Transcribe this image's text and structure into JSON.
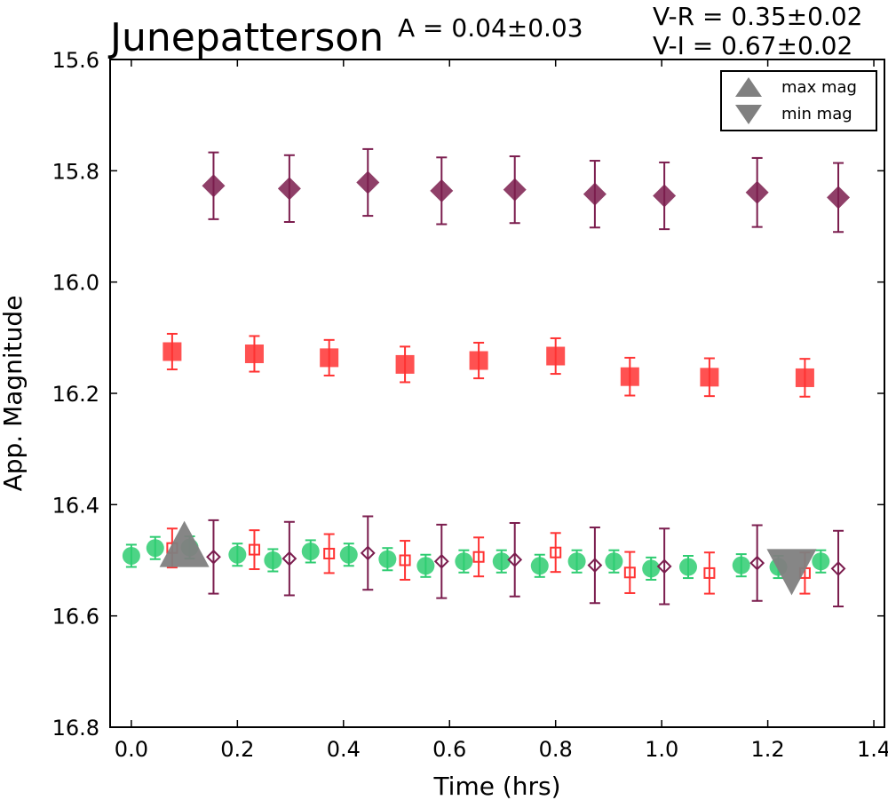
{
  "chart_data": {
    "type": "scatter",
    "title": "Junepatterson",
    "amplitude_text": "A  = 0.04±0.03",
    "color_text": [
      "V-R = 0.35±0.02",
      "V-I  = 0.67±0.02"
    ],
    "xlabel": "Time (hrs)",
    "ylabel": "App. Magnitude",
    "xlim": [
      -0.04,
      1.42
    ],
    "ylim": [
      16.8,
      15.6
    ],
    "x_ticks": [
      0.0,
      0.2,
      0.4,
      0.6,
      0.8,
      1.0,
      1.2,
      1.4
    ],
    "x_tick_labels": [
      "0.0",
      "0.2",
      "0.4",
      "0.6",
      "0.8",
      "1.0",
      "1.2",
      "1.4"
    ],
    "y_ticks": [
      15.6,
      15.8,
      16.0,
      16.2,
      16.4,
      16.6,
      16.8
    ],
    "y_tick_labels": [
      "15.6",
      "15.8",
      "16.0",
      "16.2",
      "16.4",
      "16.6",
      "16.8"
    ],
    "legend": {
      "position": "top-right",
      "entries": [
        {
          "label": "max mag",
          "marker": "triangle-up",
          "color": "#808080"
        },
        {
          "label": "min mag",
          "marker": "triangle-down",
          "color": "#808080"
        }
      ]
    },
    "colors": {
      "green": "#2ecc71",
      "red": "#ff3333",
      "purple": "#7b1d4e",
      "gray": "#808080"
    },
    "series": [
      {
        "marker": "diamond",
        "color": "#7b1d4e",
        "filled": true,
        "x": [
          0.155,
          0.298,
          0.446,
          0.585,
          0.723,
          0.874,
          1.005,
          1.18,
          1.333
        ],
        "y": [
          15.827,
          15.832,
          15.821,
          15.836,
          15.834,
          15.842,
          15.845,
          15.839,
          15.848
        ],
        "err": [
          0.06,
          0.06,
          0.06,
          0.06,
          0.06,
          0.06,
          0.06,
          0.062,
          0.062
        ]
      },
      {
        "marker": "square",
        "color": "#ff3333",
        "filled": true,
        "x": [
          0.077,
          0.232,
          0.373,
          0.516,
          0.655,
          0.8,
          0.94,
          1.09,
          1.27
        ],
        "y": [
          16.125,
          16.129,
          16.136,
          16.148,
          16.141,
          16.133,
          16.17,
          16.171,
          16.172
        ],
        "err": [
          0.032,
          0.032,
          0.032,
          0.032,
          0.032,
          0.032,
          0.034,
          0.034,
          0.034
        ]
      },
      {
        "marker": "circle",
        "color": "#2ecc71",
        "filled": true,
        "x": [
          0.0,
          0.045,
          0.11,
          0.2,
          0.267,
          0.338,
          0.41,
          0.483,
          0.555,
          0.627,
          0.698,
          0.77,
          0.84,
          0.91,
          0.98,
          1.05,
          1.15,
          1.22,
          1.3
        ],
        "y": [
          16.492,
          16.478,
          16.477,
          16.49,
          16.5,
          16.484,
          16.49,
          16.498,
          16.51,
          16.502,
          16.502,
          16.51,
          16.502,
          16.502,
          16.515,
          16.512,
          16.509,
          16.512,
          16.502
        ],
        "err": [
          0.02,
          0.02,
          0.02,
          0.02,
          0.02,
          0.02,
          0.02,
          0.02,
          0.02,
          0.02,
          0.02,
          0.02,
          0.02,
          0.02,
          0.02,
          0.02,
          0.02,
          0.02,
          0.02
        ]
      },
      {
        "marker": "square",
        "color": "#ff3333",
        "filled": false,
        "x": [
          0.077,
          0.232,
          0.373,
          0.516,
          0.655,
          0.8,
          0.94,
          1.09,
          1.27
        ],
        "y": [
          16.478,
          16.481,
          16.488,
          16.5,
          16.494,
          16.486,
          16.522,
          16.523,
          16.523
        ],
        "err": [
          0.035,
          0.035,
          0.035,
          0.035,
          0.035,
          0.035,
          0.037,
          0.037,
          0.037
        ]
      },
      {
        "marker": "diamond",
        "color": "#7b1d4e",
        "filled": false,
        "x": [
          0.155,
          0.298,
          0.446,
          0.585,
          0.723,
          0.874,
          1.005,
          1.18,
          1.333
        ],
        "y": [
          16.494,
          16.497,
          16.487,
          16.502,
          16.499,
          16.509,
          16.511,
          16.505,
          16.515
        ],
        "err": [
          0.066,
          0.066,
          0.066,
          0.066,
          0.066,
          0.068,
          0.068,
          0.068,
          0.068
        ]
      }
    ],
    "extrema": [
      {
        "label": "max mag",
        "marker": "triangle-up",
        "x": 0.1,
        "y": 16.477
      },
      {
        "label": "min mag",
        "marker": "triangle-down",
        "x": 1.245,
        "y": 16.515
      }
    ]
  }
}
